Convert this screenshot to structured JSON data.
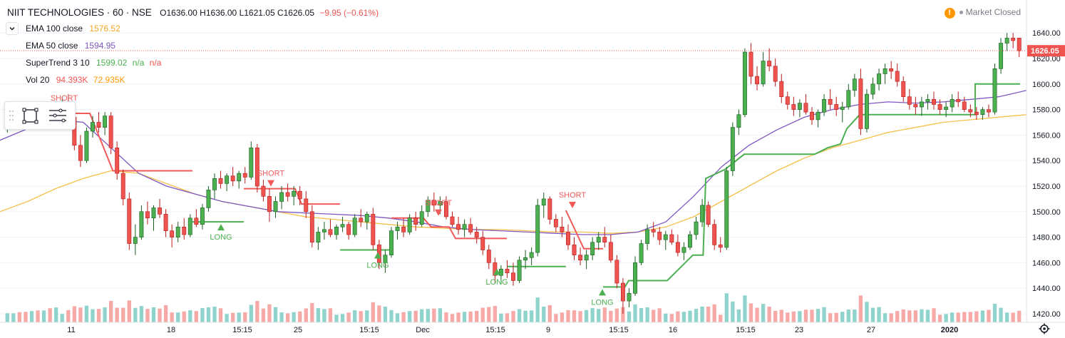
{
  "header": {
    "symbol": "NIIT TECHNOLOGIES · 60 · NSE",
    "ohlc": "O1636.00 H1636.00 L1621.05 C1626.05",
    "change": "−9.95 (−0.61%)",
    "market_status": "Market Closed"
  },
  "indicators": {
    "ema100": {
      "label": "EMA 100 close",
      "value": "1576.52"
    },
    "ema50": {
      "label": "EMA 50 close",
      "value": "1594.95"
    },
    "supertrend": {
      "label": "SuperTrend 3 10",
      "value": "1599.02",
      "na1": "n/a",
      "na2": "n/a"
    },
    "volume": {
      "label": "Vol 20",
      "value1": "94.393K",
      "value2": "72.935K"
    }
  },
  "colors": {
    "up": "#26a69a",
    "down": "#ef5350",
    "candle_up_fill": "#4caf50",
    "ema100": "#f5c04a",
    "ema50": "#7e57c2",
    "st_up": "#4caf50",
    "st_down": "#f25a5a",
    "vol_up": "#8fd3cd",
    "vol_down": "#f7a9a7",
    "grid": "#f0f3fa",
    "price_tag": "#ef5350"
  },
  "chart_data": {
    "type": "candlestick",
    "ylim": [
      1410,
      1650
    ],
    "y_ticks": [
      "1640.00",
      "1620.00",
      "1600.00",
      "1580.00",
      "1560.00",
      "1540.00",
      "1520.00",
      "1500.00",
      "1480.00",
      "1460.00",
      "1440.00",
      "1420.00"
    ],
    "x_ticks": [
      "11",
      "18",
      "15:15",
      "25",
      "15:15",
      "Dec",
      "15:15",
      "9",
      "15:15",
      "16",
      "15:15",
      "23",
      "27",
      "2020"
    ],
    "last_price": "1626.05",
    "ohlc": [
      [
        1570,
        1578,
        1562,
        1572
      ],
      [
        1572,
        1582,
        1568,
        1577
      ],
      [
        1577,
        1585,
        1570,
        1574
      ],
      [
        1574,
        1580,
        1566,
        1569
      ],
      [
        1569,
        1579,
        1565,
        1575
      ],
      [
        1575,
        1583,
        1569,
        1571
      ],
      [
        1571,
        1580,
        1568,
        1578
      ],
      [
        1578,
        1586,
        1570,
        1572
      ],
      [
        1572,
        1585,
        1569,
        1580
      ],
      [
        1580,
        1590,
        1576,
        1584
      ],
      [
        1584,
        1592,
        1570,
        1574
      ],
      [
        1574,
        1578,
        1548,
        1552
      ],
      [
        1552,
        1560,
        1535,
        1540
      ],
      [
        1540,
        1566,
        1538,
        1563
      ],
      [
        1563,
        1575,
        1558,
        1570
      ],
      [
        1570,
        1578,
        1562,
        1566
      ],
      [
        1566,
        1578,
        1560,
        1575
      ],
      [
        1575,
        1578,
        1545,
        1550
      ],
      [
        1550,
        1555,
        1525,
        1530
      ],
      [
        1530,
        1533,
        1505,
        1510
      ],
      [
        1510,
        1515,
        1470,
        1475
      ],
      [
        1475,
        1490,
        1466,
        1480
      ],
      [
        1480,
        1505,
        1478,
        1500
      ],
      [
        1500,
        1508,
        1490,
        1495
      ],
      [
        1495,
        1505,
        1485,
        1503
      ],
      [
        1503,
        1510,
        1495,
        1498
      ],
      [
        1498,
        1502,
        1480,
        1485
      ],
      [
        1485,
        1490,
        1472,
        1480
      ],
      [
        1480,
        1492,
        1476,
        1488
      ],
      [
        1488,
        1495,
        1478,
        1482
      ],
      [
        1482,
        1498,
        1480,
        1495
      ],
      [
        1495,
        1502,
        1488,
        1490
      ],
      [
        1490,
        1506,
        1486,
        1503
      ],
      [
        1503,
        1520,
        1500,
        1517
      ],
      [
        1517,
        1530,
        1510,
        1526
      ],
      [
        1526,
        1532,
        1518,
        1522
      ],
      [
        1522,
        1530,
        1516,
        1528
      ],
      [
        1528,
        1535,
        1520,
        1524
      ],
      [
        1524,
        1532,
        1518,
        1530
      ],
      [
        1530,
        1535,
        1522,
        1527
      ],
      [
        1527,
        1555,
        1525,
        1550
      ],
      [
        1550,
        1553,
        1515,
        1520
      ],
      [
        1520,
        1525,
        1508,
        1512
      ],
      [
        1512,
        1518,
        1492,
        1500
      ],
      [
        1500,
        1512,
        1495,
        1508
      ],
      [
        1508,
        1520,
        1502,
        1515
      ],
      [
        1515,
        1522,
        1508,
        1512
      ],
      [
        1512,
        1520,
        1505,
        1516
      ],
      [
        1516,
        1520,
        1505,
        1510
      ],
      [
        1510,
        1516,
        1495,
        1500
      ],
      [
        1500,
        1505,
        1472,
        1476
      ],
      [
        1476,
        1488,
        1470,
        1484
      ],
      [
        1484,
        1492,
        1478,
        1486
      ],
      [
        1486,
        1494,
        1480,
        1482
      ],
      [
        1482,
        1490,
        1478,
        1488
      ],
      [
        1488,
        1496,
        1484,
        1490
      ],
      [
        1490,
        1492,
        1478,
        1482
      ],
      [
        1482,
        1498,
        1480,
        1495
      ],
      [
        1495,
        1502,
        1488,
        1492
      ],
      [
        1492,
        1500,
        1486,
        1498
      ],
      [
        1498,
        1503,
        1470,
        1474
      ],
      [
        1474,
        1478,
        1455,
        1460
      ],
      [
        1460,
        1470,
        1452,
        1466
      ],
      [
        1466,
        1488,
        1464,
        1485
      ],
      [
        1485,
        1492,
        1478,
        1488
      ],
      [
        1488,
        1495,
        1480,
        1484
      ],
      [
        1484,
        1498,
        1482,
        1495
      ],
      [
        1495,
        1500,
        1485,
        1490
      ],
      [
        1490,
        1505,
        1488,
        1500
      ],
      [
        1500,
        1512,
        1496,
        1509
      ],
      [
        1509,
        1515,
        1500,
        1505
      ],
      [
        1505,
        1512,
        1498,
        1508
      ],
      [
        1508,
        1512,
        1494,
        1496
      ],
      [
        1496,
        1500,
        1488,
        1490
      ],
      [
        1490,
        1496,
        1482,
        1486
      ],
      [
        1486,
        1494,
        1480,
        1490
      ],
      [
        1490,
        1495,
        1482,
        1484
      ],
      [
        1484,
        1488,
        1475,
        1480
      ],
      [
        1480,
        1485,
        1466,
        1470
      ],
      [
        1470,
        1474,
        1455,
        1460
      ],
      [
        1460,
        1464,
        1444,
        1450
      ],
      [
        1450,
        1458,
        1443,
        1455
      ],
      [
        1455,
        1462,
        1448,
        1452
      ],
      [
        1452,
        1460,
        1442,
        1446
      ],
      [
        1446,
        1465,
        1444,
        1462
      ],
      [
        1462,
        1470,
        1455,
        1464
      ],
      [
        1464,
        1472,
        1458,
        1468
      ],
      [
        1468,
        1510,
        1465,
        1505
      ],
      [
        1505,
        1515,
        1495,
        1510
      ],
      [
        1510,
        1512,
        1490,
        1494
      ],
      [
        1494,
        1498,
        1484,
        1488
      ],
      [
        1488,
        1496,
        1480,
        1484
      ],
      [
        1484,
        1490,
        1470,
        1474
      ],
      [
        1474,
        1480,
        1462,
        1466
      ],
      [
        1466,
        1472,
        1458,
        1462
      ],
      [
        1462,
        1470,
        1455,
        1466
      ],
      [
        1466,
        1480,
        1462,
        1476
      ],
      [
        1476,
        1484,
        1470,
        1480
      ],
      [
        1480,
        1488,
        1472,
        1476
      ],
      [
        1476,
        1482,
        1460,
        1462
      ],
      [
        1462,
        1466,
        1440,
        1444
      ],
      [
        1444,
        1448,
        1420,
        1430
      ],
      [
        1430,
        1440,
        1425,
        1436
      ],
      [
        1436,
        1465,
        1434,
        1460
      ],
      [
        1460,
        1478,
        1458,
        1475
      ],
      [
        1475,
        1490,
        1470,
        1486
      ],
      [
        1486,
        1492,
        1480,
        1484
      ],
      [
        1484,
        1488,
        1474,
        1478
      ],
      [
        1478,
        1485,
        1470,
        1482
      ],
      [
        1482,
        1486,
        1474,
        1476
      ],
      [
        1476,
        1482,
        1465,
        1468
      ],
      [
        1468,
        1476,
        1462,
        1472
      ],
      [
        1472,
        1485,
        1470,
        1482
      ],
      [
        1482,
        1496,
        1478,
        1492
      ],
      [
        1492,
        1510,
        1488,
        1505
      ],
      [
        1505,
        1508,
        1488,
        1490
      ],
      [
        1490,
        1494,
        1470,
        1474
      ],
      [
        1474,
        1480,
        1468,
        1472
      ],
      [
        1472,
        1535,
        1470,
        1532
      ],
      [
        1532,
        1570,
        1528,
        1566
      ],
      [
        1566,
        1580,
        1560,
        1576
      ],
      [
        1576,
        1628,
        1574,
        1625
      ],
      [
        1625,
        1632,
        1600,
        1606
      ],
      [
        1606,
        1614,
        1595,
        1600
      ],
      [
        1600,
        1625,
        1598,
        1618
      ],
      [
        1618,
        1628,
        1610,
        1614
      ],
      [
        1614,
        1620,
        1598,
        1602
      ],
      [
        1602,
        1608,
        1585,
        1590
      ],
      [
        1590,
        1594,
        1580,
        1584
      ],
      [
        1584,
        1590,
        1575,
        1580
      ],
      [
        1580,
        1588,
        1574,
        1585
      ],
      [
        1585,
        1592,
        1576,
        1578
      ],
      [
        1578,
        1582,
        1568,
        1572
      ],
      [
        1572,
        1580,
        1566,
        1578
      ],
      [
        1578,
        1592,
        1575,
        1588
      ],
      [
        1588,
        1596,
        1580,
        1584
      ],
      [
        1584,
        1590,
        1575,
        1580
      ],
      [
        1580,
        1586,
        1570,
        1582
      ],
      [
        1582,
        1600,
        1580,
        1595
      ],
      [
        1595,
        1608,
        1590,
        1604
      ],
      [
        1604,
        1612,
        1560,
        1565
      ],
      [
        1565,
        1596,
        1562,
        1592
      ],
      [
        1592,
        1605,
        1588,
        1600
      ],
      [
        1600,
        1612,
        1595,
        1608
      ],
      [
        1608,
        1616,
        1600,
        1612
      ],
      [
        1612,
        1618,
        1604,
        1610
      ],
      [
        1610,
        1616,
        1598,
        1602
      ],
      [
        1602,
        1606,
        1586,
        1590
      ],
      [
        1590,
        1596,
        1580,
        1584
      ],
      [
        1584,
        1590,
        1576,
        1582
      ],
      [
        1582,
        1590,
        1575,
        1586
      ],
      [
        1586,
        1592,
        1580,
        1588
      ],
      [
        1588,
        1594,
        1580,
        1584
      ],
      [
        1584,
        1588,
        1576,
        1580
      ],
      [
        1580,
        1586,
        1574,
        1582
      ],
      [
        1582,
        1592,
        1578,
        1588
      ],
      [
        1588,
        1594,
        1582,
        1586
      ],
      [
        1586,
        1590,
        1578,
        1580
      ],
      [
        1580,
        1584,
        1574,
        1578
      ],
      [
        1578,
        1582,
        1572,
        1576
      ],
      [
        1576,
        1582,
        1572,
        1580
      ],
      [
        1580,
        1584,
        1574,
        1578
      ],
      [
        1578,
        1616,
        1576,
        1612
      ],
      [
        1612,
        1636,
        1608,
        1632
      ],
      [
        1632,
        1640,
        1626,
        1636
      ],
      [
        1636,
        1640,
        1628,
        1634
      ],
      [
        1636,
        1636,
        1621,
        1626
      ]
    ],
    "ema100": [
      1500,
      1508,
      1518,
      1526,
      1532,
      1530,
      1522,
      1514,
      1508,
      1504,
      1500,
      1496,
      1494,
      1492,
      1490,
      1488,
      1487,
      1486,
      1486,
      1485,
      1484,
      1484,
      1483,
      1484,
      1488,
      1496,
      1508,
      1520,
      1532,
      1542,
      1550,
      1556,
      1562,
      1566,
      1570,
      1572,
      1574,
      1576
    ],
    "ema50": [
      1556,
      1565,
      1572,
      1570,
      1550,
      1530,
      1520,
      1514,
      1508,
      1504,
      1500,
      1499,
      1498,
      1497,
      1495,
      1492,
      1488,
      1486,
      1485,
      1484,
      1483,
      1482,
      1482,
      1484,
      1492,
      1512,
      1535,
      1552,
      1564,
      1574,
      1580,
      1584,
      1586,
      1585,
      1586,
      1588,
      1590,
      1595
    ],
    "supertrend": [
      {
        "dir": "down",
        "pts": [
          [
            8,
            1577
          ],
          [
            70,
            1577
          ],
          [
            88,
            1532
          ],
          [
            150,
            1532
          ]
        ]
      },
      {
        "dir": "up",
        "pts": [
          [
            150,
            1492
          ],
          [
            190,
            1492
          ]
        ]
      },
      {
        "dir": "down",
        "pts": [
          [
            190,
            1518
          ],
          [
            230,
            1518
          ],
          [
            235,
            1506
          ],
          [
            265,
            1506
          ]
        ]
      },
      {
        "dir": "up",
        "pts": [
          [
            265,
            1470
          ],
          [
            305,
            1470
          ]
        ]
      },
      {
        "dir": "down",
        "pts": [
          [
            305,
            1495
          ],
          [
            330,
            1495
          ],
          [
            336,
            1488
          ],
          [
            350,
            1488
          ],
          [
            355,
            1479
          ],
          [
            395,
            1479
          ]
        ]
      },
      {
        "dir": "up",
        "pts": [
          [
            395,
            1457
          ],
          [
            441,
            1457
          ]
        ]
      },
      {
        "dir": "down",
        "pts": [
          [
            441,
            1501
          ],
          [
            455,
            1471
          ],
          [
            470,
            1471
          ]
        ]
      },
      {
        "dir": "up",
        "pts": [
          [
            470,
            1441
          ],
          [
            487,
            1441
          ],
          [
            490,
            1446
          ],
          [
            520,
            1446
          ],
          [
            540,
            1466
          ],
          [
            548,
            1466
          ],
          [
            550,
            1526
          ],
          [
            565,
            1533
          ],
          [
            580,
            1545
          ],
          [
            635,
            1545
          ],
          [
            645,
            1550
          ],
          [
            655,
            1553
          ],
          [
            660,
            1565
          ],
          [
            670,
            1576
          ],
          [
            760,
            1576
          ],
          [
            760,
            1600
          ],
          [
            795,
            1600
          ]
        ]
      }
    ],
    "signals": [
      {
        "label": "SHORT",
        "type": "short"
      },
      {
        "label": "LONG",
        "type": "long"
      },
      {
        "label": "SHORT",
        "type": "short"
      },
      {
        "label": "LONG",
        "type": "long"
      },
      {
        "label": "SHORT",
        "type": "short"
      },
      {
        "label": "LONG",
        "type": "long"
      },
      {
        "label": "SHORT",
        "type": "short"
      },
      {
        "label": "LONG",
        "type": "long"
      }
    ]
  }
}
